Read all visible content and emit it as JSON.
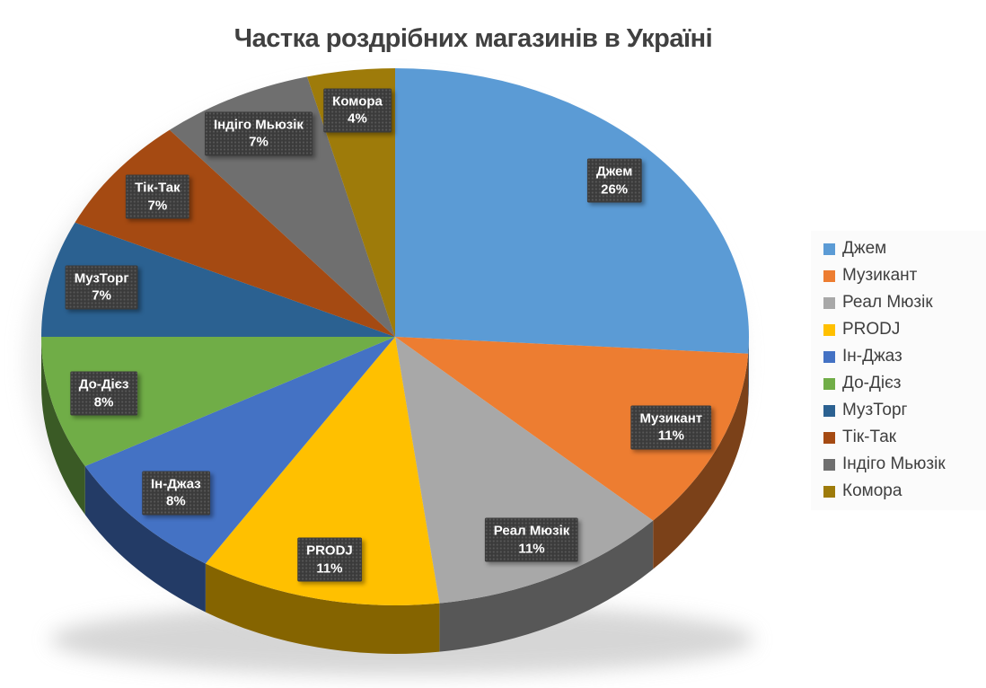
{
  "title": "Частка роздрібних магазинів в Україні",
  "chart_data": {
    "type": "pie",
    "style": "3d-pie",
    "title": "Частка роздрібних магазинів в Україні",
    "legend_position": "right",
    "data_label_format": "name + percent",
    "start_angle_deg": 0,
    "direction": "clockwise",
    "slices": [
      {
        "name": "Джем",
        "percent": 26,
        "label": "Джем 26%",
        "color": "#5B9BD5"
      },
      {
        "name": "Музикант",
        "percent": 11,
        "label": "Музикант 11%",
        "color": "#ED7D31"
      },
      {
        "name": "Реал Мюзік",
        "percent": 11,
        "label": "Реал Мюзік 11%",
        "color": "#A8A8A8"
      },
      {
        "name": "PRODJ",
        "percent": 11,
        "label": "PRODJ 11%",
        "color": "#FFC000"
      },
      {
        "name": "Ін-Джаз",
        "percent": 8,
        "label": "Ін-Джаз 8%",
        "color": "#4472C4"
      },
      {
        "name": "До-Дієз",
        "percent": 8,
        "label": "До-Дієз 8%",
        "color": "#70AD47"
      },
      {
        "name": "МузТорг",
        "percent": 7,
        "label": "МузТорг 7%",
        "color": "#2B6191"
      },
      {
        "name": "Тік-Так",
        "percent": 7,
        "label": "Тік-Так 7%",
        "color": "#A54A12"
      },
      {
        "name": "Індіго Мьюзік",
        "percent": 7,
        "label": "Індіго Мьюзік 7%",
        "color": "#6F6F6F"
      },
      {
        "name": "Комора",
        "percent": 4,
        "label": "Комора 4%",
        "color": "#9E7B0A"
      }
    ],
    "legend_entries": [
      "Джем",
      "Музикант",
      "Реал Мюзік",
      "PRODJ",
      "Ін-Джаз",
      "До-Дієз",
      "МузТорг",
      "Тік-Так",
      "Індіго Мьюзік",
      "Комора"
    ]
  }
}
